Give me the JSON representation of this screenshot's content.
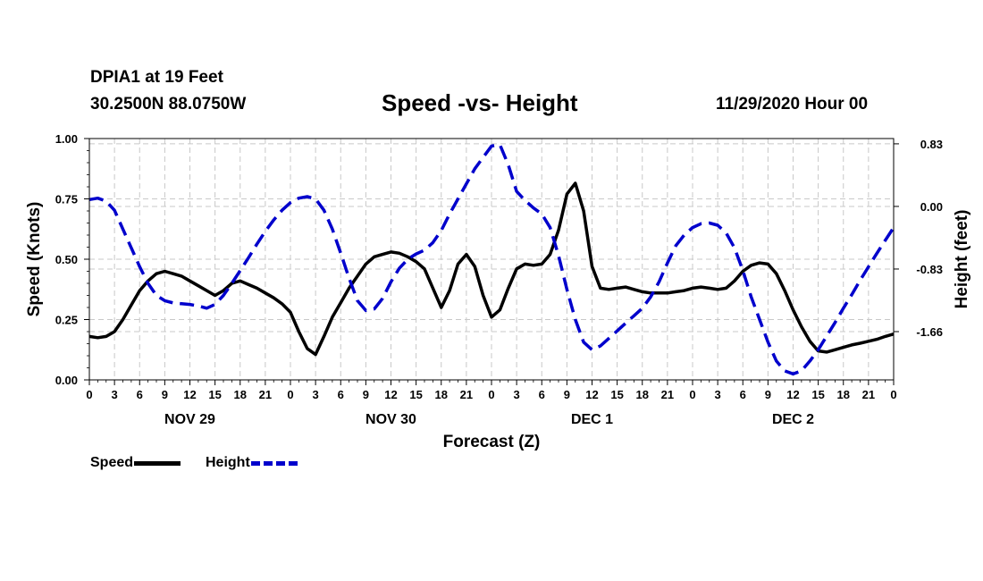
{
  "header": {
    "station": "DPIA1 at 19 Feet",
    "coords": "30.2500N 88.0750W",
    "title": "Speed -vs- Height",
    "timestamp": "11/29/2020 Hour 00"
  },
  "legend": {
    "speed_label": "Speed",
    "height_label": "Height"
  },
  "chart_data": {
    "type": "line",
    "title": "Speed -vs- Height",
    "xlabel": "Forecast (Z)",
    "ylabel_left": "Speed (Knots)",
    "ylabel_right": "Height (feet)",
    "x_range_hours": [
      0,
      96
    ],
    "x_tick_hours": [
      0,
      3,
      6,
      9,
      12,
      15,
      18,
      21,
      24,
      27,
      30,
      33,
      36,
      39,
      42,
      45,
      48,
      51,
      54,
      57,
      60,
      63,
      66,
      69,
      72,
      75,
      78,
      81,
      84,
      87,
      90,
      93,
      96
    ],
    "x_tick_labels": [
      "0",
      "3",
      "6",
      "9",
      "12",
      "15",
      "18",
      "21",
      "0",
      "3",
      "6",
      "9",
      "12",
      "15",
      "18",
      "21",
      "0",
      "3",
      "6",
      "9",
      "12",
      "15",
      "18",
      "21",
      "0",
      "3",
      "6",
      "9",
      "12",
      "15",
      "18",
      "21",
      "0"
    ],
    "day_labels": [
      {
        "hour": 12,
        "label": "NOV 29"
      },
      {
        "hour": 36,
        "label": "NOV 30"
      },
      {
        "hour": 60,
        "label": "DEC 1"
      },
      {
        "hour": 84,
        "label": "DEC 2"
      }
    ],
    "y_left": {
      "range": [
        0,
        1
      ],
      "ticks": [
        0,
        0.25,
        0.5,
        0.75,
        1
      ],
      "tick_labels": [
        "0.00",
        "0.25",
        "0.50",
        "0.75",
        "1.00"
      ]
    },
    "y_right": {
      "range": [
        -2.3,
        0.9
      ],
      "ticks": [
        0.83,
        0.0,
        -0.83,
        -1.66
      ],
      "tick_labels": [
        "0.83",
        "0.00",
        "-0.83",
        "-1.66"
      ]
    },
    "grid": true,
    "series": [
      {
        "name": "Speed",
        "axis": "left",
        "color": "#000000",
        "dash": "solid",
        "points": [
          [
            0,
            0.18
          ],
          [
            1,
            0.175
          ],
          [
            2,
            0.18
          ],
          [
            3,
            0.2
          ],
          [
            4,
            0.25
          ],
          [
            5,
            0.31
          ],
          [
            6,
            0.37
          ],
          [
            7,
            0.41
          ],
          [
            8,
            0.44
          ],
          [
            9,
            0.45
          ],
          [
            10,
            0.44
          ],
          [
            11,
            0.43
          ],
          [
            12,
            0.41
          ],
          [
            13,
            0.39
          ],
          [
            14,
            0.37
          ],
          [
            15,
            0.35
          ],
          [
            16,
            0.37
          ],
          [
            17,
            0.4
          ],
          [
            18,
            0.41
          ],
          [
            19,
            0.395
          ],
          [
            20,
            0.38
          ],
          [
            21,
            0.36
          ],
          [
            22,
            0.34
          ],
          [
            23,
            0.315
          ],
          [
            24,
            0.28
          ],
          [
            25,
            0.2
          ],
          [
            26,
            0.13
          ],
          [
            27,
            0.105
          ],
          [
            28,
            0.18
          ],
          [
            29,
            0.26
          ],
          [
            30,
            0.32
          ],
          [
            31,
            0.38
          ],
          [
            32,
            0.43
          ],
          [
            33,
            0.48
          ],
          [
            34,
            0.51
          ],
          [
            35,
            0.52
          ],
          [
            36,
            0.53
          ],
          [
            37,
            0.525
          ],
          [
            38,
            0.51
          ],
          [
            39,
            0.49
          ],
          [
            40,
            0.46
          ],
          [
            41,
            0.38
          ],
          [
            42,
            0.3
          ],
          [
            43,
            0.37
          ],
          [
            44,
            0.48
          ],
          [
            45,
            0.52
          ],
          [
            46,
            0.47
          ],
          [
            47,
            0.35
          ],
          [
            48,
            0.26
          ],
          [
            49,
            0.29
          ],
          [
            50,
            0.38
          ],
          [
            51,
            0.46
          ],
          [
            52,
            0.48
          ],
          [
            53,
            0.475
          ],
          [
            54,
            0.48
          ],
          [
            55,
            0.52
          ],
          [
            56,
            0.62
          ],
          [
            57,
            0.77
          ],
          [
            58,
            0.815
          ],
          [
            59,
            0.7
          ],
          [
            60,
            0.47
          ],
          [
            61,
            0.38
          ],
          [
            62,
            0.375
          ],
          [
            63,
            0.38
          ],
          [
            64,
            0.385
          ],
          [
            65,
            0.375
          ],
          [
            66,
            0.365
          ],
          [
            67,
            0.36
          ],
          [
            68,
            0.36
          ],
          [
            69,
            0.36
          ],
          [
            70,
            0.365
          ],
          [
            71,
            0.37
          ],
          [
            72,
            0.38
          ],
          [
            73,
            0.385
          ],
          [
            74,
            0.38
          ],
          [
            75,
            0.375
          ],
          [
            76,
            0.38
          ],
          [
            77,
            0.41
          ],
          [
            78,
            0.45
          ],
          [
            79,
            0.475
          ],
          [
            80,
            0.485
          ],
          [
            81,
            0.48
          ],
          [
            82,
            0.44
          ],
          [
            83,
            0.37
          ],
          [
            84,
            0.29
          ],
          [
            85,
            0.22
          ],
          [
            86,
            0.16
          ],
          [
            87,
            0.12
          ],
          [
            88,
            0.115
          ],
          [
            89,
            0.125
          ],
          [
            90,
            0.135
          ],
          [
            91,
            0.145
          ],
          [
            92,
            0.152
          ],
          [
            93,
            0.16
          ],
          [
            94,
            0.168
          ],
          [
            95,
            0.18
          ],
          [
            96,
            0.19
          ]
        ]
      },
      {
        "name": "Height",
        "axis": "right",
        "color": "#0000cc",
        "dash": "dashed",
        "points": [
          [
            0,
            0.09
          ],
          [
            1,
            0.11
          ],
          [
            2,
            0.07
          ],
          [
            3,
            -0.05
          ],
          [
            4,
            -0.3
          ],
          [
            5,
            -0.55
          ],
          [
            6,
            -0.8
          ],
          [
            7,
            -1.02
          ],
          [
            8,
            -1.18
          ],
          [
            9,
            -1.25
          ],
          [
            10,
            -1.28
          ],
          [
            11,
            -1.29
          ],
          [
            12,
            -1.3
          ],
          [
            13,
            -1.32
          ],
          [
            14,
            -1.35
          ],
          [
            15,
            -1.3
          ],
          [
            16,
            -1.18
          ],
          [
            17,
            -1.02
          ],
          [
            18,
            -0.85
          ],
          [
            19,
            -0.68
          ],
          [
            20,
            -0.5
          ],
          [
            21,
            -0.33
          ],
          [
            22,
            -0.18
          ],
          [
            23,
            -0.05
          ],
          [
            24,
            0.05
          ],
          [
            25,
            0.11
          ],
          [
            26,
            0.13
          ],
          [
            27,
            0.1
          ],
          [
            28,
            -0.05
          ],
          [
            29,
            -0.3
          ],
          [
            30,
            -0.62
          ],
          [
            31,
            -0.95
          ],
          [
            32,
            -1.25
          ],
          [
            33,
            -1.38
          ],
          [
            34,
            -1.36
          ],
          [
            35,
            -1.22
          ],
          [
            36,
            -1.0
          ],
          [
            37,
            -0.82
          ],
          [
            38,
            -0.7
          ],
          [
            39,
            -0.63
          ],
          [
            40,
            -0.58
          ],
          [
            41,
            -0.48
          ],
          [
            42,
            -0.32
          ],
          [
            43,
            -0.1
          ],
          [
            44,
            0.1
          ],
          [
            45,
            0.3
          ],
          [
            46,
            0.5
          ],
          [
            47,
            0.65
          ],
          [
            48,
            0.8
          ],
          [
            49,
            0.82
          ],
          [
            50,
            0.55
          ],
          [
            51,
            0.2
          ],
          [
            52,
            0.08
          ],
          [
            53,
            -0.02
          ],
          [
            54,
            -0.1
          ],
          [
            55,
            -0.28
          ],
          [
            56,
            -0.65
          ],
          [
            57,
            -1.1
          ],
          [
            58,
            -1.5
          ],
          [
            59,
            -1.8
          ],
          [
            60,
            -1.9
          ],
          [
            61,
            -1.85
          ],
          [
            62,
            -1.75
          ],
          [
            63,
            -1.65
          ],
          [
            64,
            -1.55
          ],
          [
            65,
            -1.45
          ],
          [
            66,
            -1.35
          ],
          [
            67,
            -1.2
          ],
          [
            68,
            -1.0
          ],
          [
            69,
            -0.75
          ],
          [
            70,
            -0.52
          ],
          [
            71,
            -0.38
          ],
          [
            72,
            -0.28
          ],
          [
            73,
            -0.23
          ],
          [
            74,
            -0.22
          ],
          [
            75,
            -0.25
          ],
          [
            76,
            -0.35
          ],
          [
            77,
            -0.55
          ],
          [
            78,
            -0.85
          ],
          [
            79,
            -1.2
          ],
          [
            80,
            -1.5
          ],
          [
            81,
            -1.8
          ],
          [
            82,
            -2.05
          ],
          [
            83,
            -2.18
          ],
          [
            84,
            -2.22
          ],
          [
            85,
            -2.18
          ],
          [
            86,
            -2.05
          ],
          [
            87,
            -1.9
          ],
          [
            88,
            -1.72
          ],
          [
            89,
            -1.54
          ],
          [
            90,
            -1.35
          ],
          [
            91,
            -1.17
          ],
          [
            92,
            -0.98
          ],
          [
            93,
            -0.8
          ],
          [
            94,
            -0.62
          ],
          [
            95,
            -0.45
          ],
          [
            96,
            -0.28
          ]
        ]
      }
    ]
  }
}
